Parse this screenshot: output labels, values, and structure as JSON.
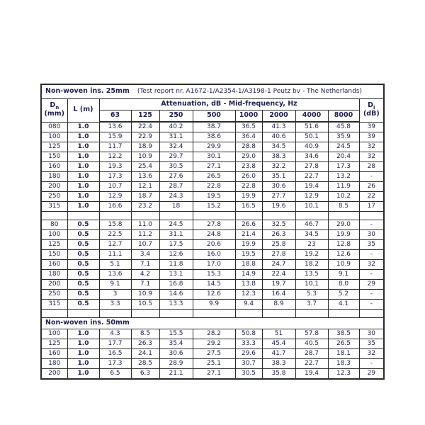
{
  "colors": {
    "text": "#1f1f52",
    "border": "#2b2b2b",
    "background": "#ffffff"
  },
  "table": {
    "title_25mm": "Non-woven ins. 25mm",
    "test_report": "(Test report nr. A1672-1/A2354-1/A3198-1 Peutz bv - The Netherlands)",
    "title_50mm": "Non-woven ins. 50mm",
    "headers": {
      "dn_main": "D",
      "dn_sub": "n",
      "dn_unit": "(mm)",
      "l_label": "L (m)",
      "attenuation_label": "Attenuation, dB - Mid-frequency, Hz",
      "frequencies": [
        "63",
        "125",
        "250",
        "500",
        "1000",
        "2000",
        "4000",
        "8000"
      ],
      "di_main": "D",
      "di_sub": "i",
      "di_unit": "(dB)"
    },
    "sections": [
      {
        "insulation": "Non-woven ins. 25mm",
        "length": "1.0",
        "rows": [
          [
            "080",
            "1.0",
            "13.6",
            "22.4",
            "40.2",
            "38.7",
            "36.5",
            "41.3",
            "51.6",
            "45.8",
            "39"
          ],
          [
            "100",
            "1.0",
            "15.9",
            "22.9",
            "31.1",
            "38.6",
            "36.4",
            "40.6",
            "50.1",
            "35.9",
            "39"
          ],
          [
            "125",
            "1.0",
            "11.7",
            "18.9",
            "32.4",
            "29.9",
            "28.8",
            "34.5",
            "40.9",
            "24.5",
            "32"
          ],
          [
            "150",
            "1.0",
            "12.2",
            "10.9",
            "29.7",
            "30.1",
            "29.0",
            "38.3",
            "34.6",
            "20.4",
            "32"
          ],
          [
            "160",
            "1.0",
            "19.3",
            "25.4",
            "30.5",
            "27.1",
            "23.8",
            "32.2",
            "27.8",
            "17.3",
            "28"
          ],
          [
            "180",
            "1.0",
            "17.3",
            "13.6",
            "27.6",
            "26.5",
            "26.0",
            "35.1",
            "22.7",
            "13.2",
            "-"
          ],
          [
            "200",
            "1.0",
            "10.7",
            "12.1",
            "28.7",
            "22.8",
            "22.8",
            "30.6",
            "19.4",
            "11.9",
            "26"
          ],
          [
            "250",
            "1.0",
            "12.9",
            "18.7",
            "24.3",
            "19.5",
            "19.9",
            "27.7",
            "12.9",
            "10.2",
            "22"
          ],
          [
            "315",
            "1.0",
            "16.6",
            "23.2",
            "18",
            "15.2",
            "16.5",
            "19.6",
            "10.1",
            "8.5",
            "17"
          ]
        ]
      },
      {
        "insulation": "Non-woven ins. 25mm",
        "length": "0.5",
        "rows": [
          [
            "80",
            "0.5",
            "15.8",
            "11.0",
            "24.5",
            "27.8",
            "26.6",
            "32.5",
            "46.7",
            "29.0",
            "-"
          ],
          [
            "100",
            "0.5",
            "22.5",
            "11.2",
            "31.1",
            "24.8",
            "21.4",
            "26.3",
            "34.5",
            "19.9",
            "30"
          ],
          [
            "125",
            "0.5",
            "12.7",
            "10.7",
            "17.5",
            "20.6",
            "19.9",
            "25.8",
            "23",
            "12.8",
            "35"
          ],
          [
            "150",
            "0.5",
            "11.1",
            "3.4",
            "12.6",
            "16.0",
            "19.5",
            "27.8",
            "19.2",
            "12.6",
            "-"
          ],
          [
            "160",
            "0.5",
            "5.1",
            "7.1",
            "11.8",
            "17.0",
            "18.8",
            "24.7",
            "18.2",
            "10.9",
            "32"
          ],
          [
            "180",
            "0.5",
            "13.6",
            "4.2",
            "13.1",
            "15.3",
            "14.9",
            "22.4",
            "13.5",
            "9.1",
            "-"
          ],
          [
            "200",
            "0.5",
            "9.1",
            "7.1",
            "16.8",
            "14.5",
            "13.8",
            "19.7",
            "10.1",
            "8.0",
            "29"
          ],
          [
            "250",
            "0.5",
            "3",
            "10.9",
            "14.6",
            "12.6",
            "12.3",
            "16.4",
            "5.3",
            "5.2",
            "-"
          ],
          [
            "315",
            "0.5",
            "3.3",
            "10.5",
            "13.3",
            "9.9",
            "9.4",
            "8.9",
            "3.7",
            "4.1",
            "-"
          ]
        ]
      },
      {
        "insulation": "Non-woven ins. 50mm",
        "length": "1.0",
        "rows": [
          [
            "100",
            "1.0",
            "4.3",
            "8.5",
            "15.5",
            "28.2",
            "50.8",
            "51",
            "57.8",
            "38.5",
            "30"
          ],
          [
            "125",
            "1.0",
            "17.7",
            "26.3",
            "35.4",
            "29.2",
            "33.3",
            "45.4",
            "40.5",
            "26.5",
            "35"
          ],
          [
            "160",
            "1.0",
            "16.5",
            "24.1",
            "30.6",
            "27.5",
            "29.6",
            "41.7",
            "28.7",
            "18.1",
            "32"
          ],
          [
            "180",
            "1.0",
            "17.3",
            "28.5",
            "28.9",
            "25.1",
            "30.7",
            "38.3",
            "22.7",
            "18.3",
            "-"
          ],
          [
            "200",
            "1.0",
            "6.5",
            "6.3",
            "21.1",
            "27.1",
            "30.5",
            "35.8",
            "19.4",
            "12.3",
            "29"
          ]
        ]
      }
    ]
  }
}
